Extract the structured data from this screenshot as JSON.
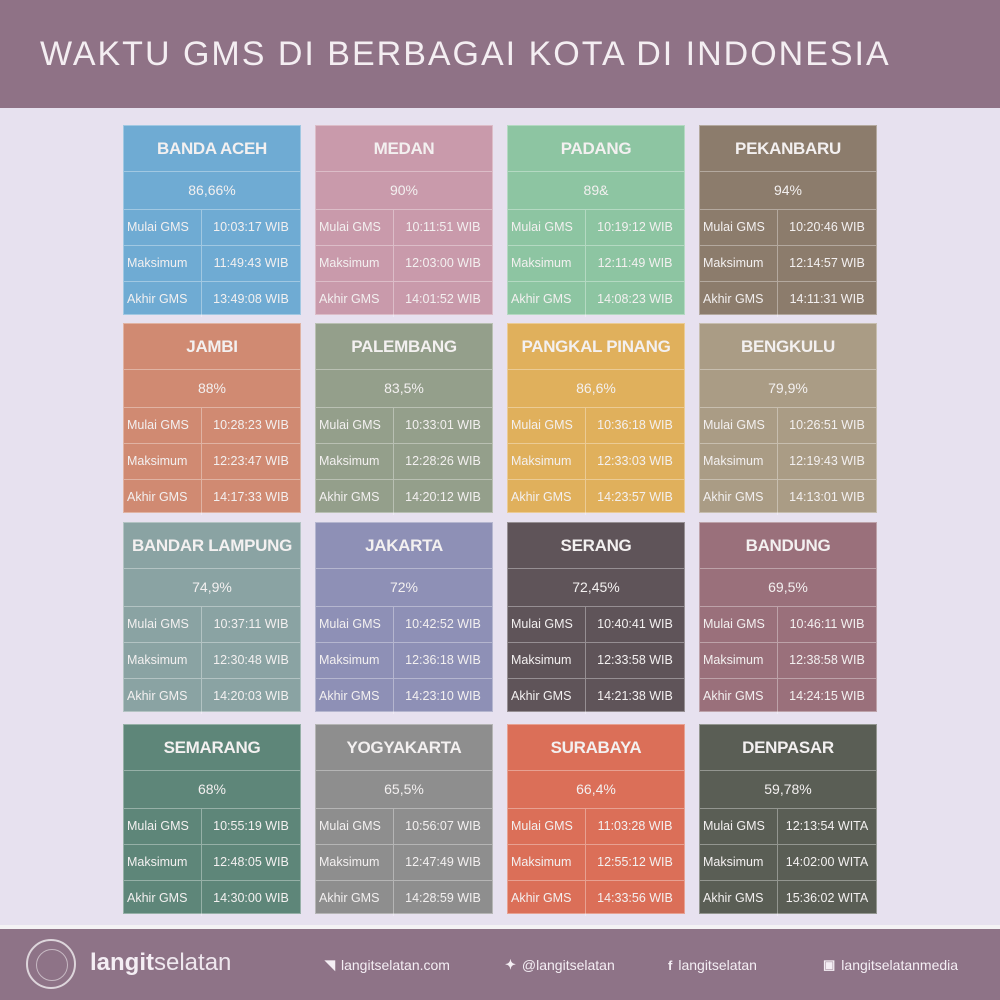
{
  "title": "WAKTU GMS DI BERBAGAI KOTA DI INDONESIA",
  "labels": {
    "start": "Mulai GMS",
    "max": "Maksimum",
    "end": "Akhir GMS"
  },
  "cities": [
    {
      "name": "BANDA ACEH",
      "pct": "86,66%",
      "start": "10:03:17 WIB",
      "max": "11:49:43 WIB",
      "end": "13:49:08 WIB",
      "color": "#6fabd3"
    },
    {
      "name": "MEDAN",
      "pct": "90%",
      "start": "10:11:51 WIB",
      "max": "12:03:00 WIB",
      "end": "14:01:52 WIB",
      "color": "#c99aab"
    },
    {
      "name": "PADANG",
      "pct": "89&",
      "start": "10:19:12 WIB",
      "max": "12:11:49 WIB",
      "end": "14:08:23 WIB",
      "color": "#8dc5a2"
    },
    {
      "name": "PEKANBARU",
      "pct": "94%",
      "start": "10:20:46 WIB",
      "max": "12:14:57 WIB",
      "end": "14:11:31 WIB",
      "color": "#8c7c6c"
    },
    {
      "name": "JAMBI",
      "pct": "88%",
      "start": "10:28:23 WIB",
      "max": "12:23:47 WIB",
      "end": "14:17:33 WIB",
      "color": "#d08a72"
    },
    {
      "name": "PALEMBANG",
      "pct": "83,5%",
      "start": "10:33:01 WIB",
      "max": "12:28:26 WIB",
      "end": "14:20:12 WIB",
      "color": "#949f8b"
    },
    {
      "name": "PANGKAL PINANG",
      "pct": "86,6%",
      "start": "10:36:18 WIB",
      "max": "12:33:03 WIB",
      "end": "14:23:57 WIB",
      "color": "#e0b05c"
    },
    {
      "name": "BENGKULU",
      "pct": "79,9%",
      "start": "10:26:51 WIB",
      "max": "12:19:43 WIB",
      "end": "14:13:01 WIB",
      "color": "#aa9c85"
    },
    {
      "name": "BANDAR LAMPUNG",
      "pct": "74,9%",
      "start": "10:37:11 WIB",
      "max": "12:30:48 WIB",
      "end": "14:20:03 WIB",
      "color": "#8aa3a3"
    },
    {
      "name": "JAKARTA",
      "pct": "72%",
      "start": "10:42:52 WIB",
      "max": "12:36:18 WIB",
      "end": "14:23:10 WIB",
      "color": "#8e90b6"
    },
    {
      "name": "SERANG",
      "pct": "72,45%",
      "start": "10:40:41 WIB",
      "max": "12:33:58 WIB",
      "end": "14:21:38 WIB",
      "color": "#5f5459"
    },
    {
      "name": "BANDUNG",
      "pct": "69,5%",
      "start": "10:46:11 WIB",
      "max": "12:38:58 WIB",
      "end": "14:24:15 WIB",
      "color": "#9a707b"
    },
    {
      "name": "SEMARANG",
      "pct": "68%",
      "start": "10:55:19 WIB",
      "max": "12:48:05 WIB",
      "end": "14:30:00 WIB",
      "color": "#5e8679"
    },
    {
      "name": "YOGYAKARTA",
      "pct": "65,5%",
      "start": "10:56:07 WIB",
      "max": "12:47:49 WIB",
      "end": "14:28:59 WIB",
      "color": "#8e8e8e"
    },
    {
      "name": "SURABAYA",
      "pct": "66,4%",
      "start": "11:03:28 WIB",
      "max": "12:55:12 WIB",
      "end": "14:33:56 WIB",
      "color": "#db6f58"
    },
    {
      "name": "DENPASAR",
      "pct": "59,78%",
      "start": "12:13:54 WITA",
      "max": "14:02:00 WITA",
      "end": "15:36:02 WITA",
      "color": "#5a5e55"
    }
  ],
  "footer": {
    "logo_text": "LANGITSELATAN",
    "brand_bold": "langit",
    "brand_light": "selatan",
    "website": {
      "icon": "rss-icon",
      "glyph": "◥",
      "text": "langitselatan.com"
    },
    "twitter": {
      "icon": "twitter-icon",
      "glyph": "✦",
      "text": "@langitselatan"
    },
    "facebook": {
      "icon": "facebook-icon",
      "glyph": "f",
      "text": "langitselatan"
    },
    "instagram": {
      "icon": "instagram-icon",
      "glyph": "▣",
      "text": "langitselatanmedia"
    }
  }
}
